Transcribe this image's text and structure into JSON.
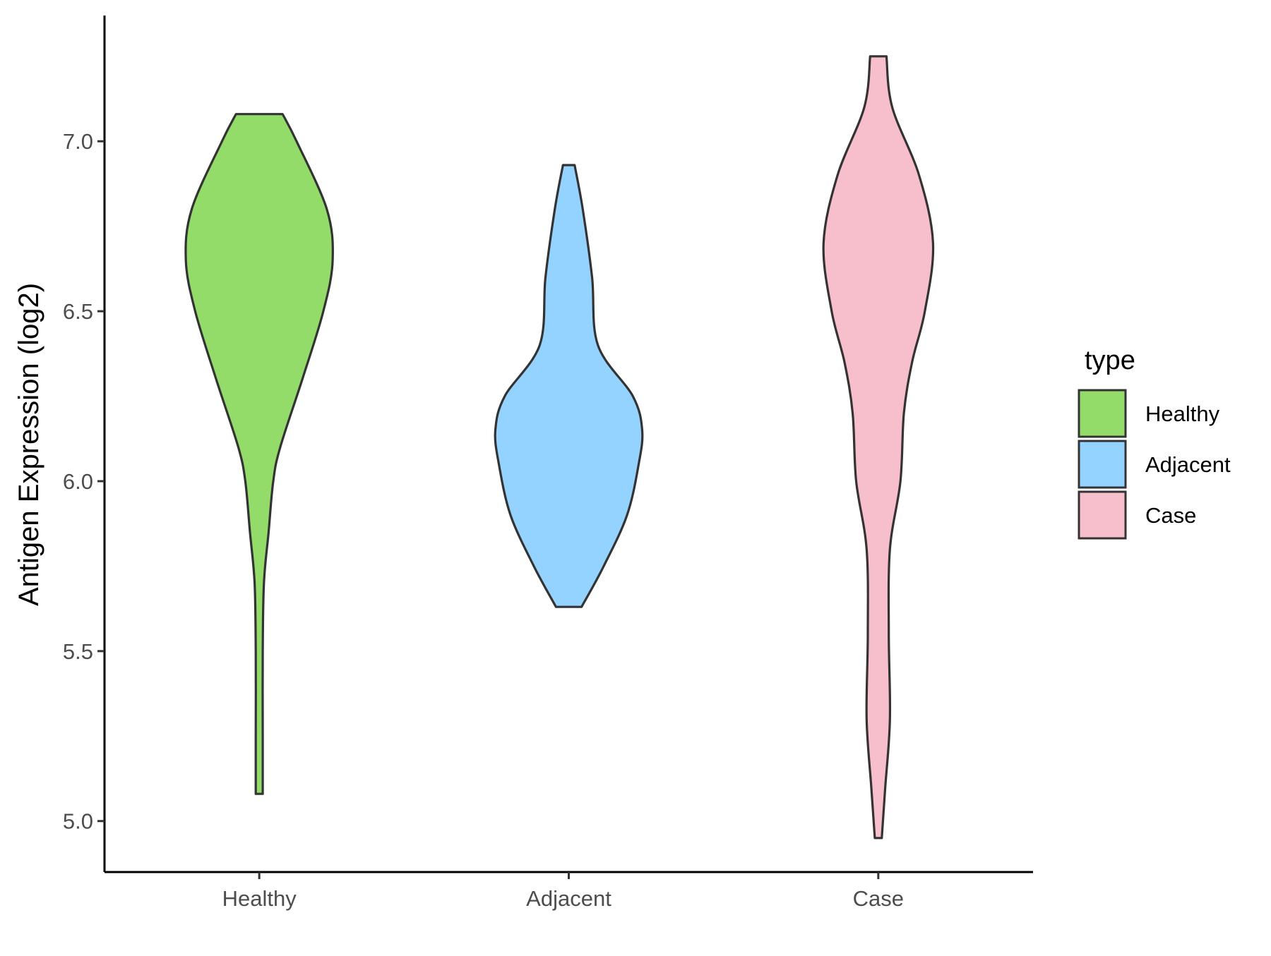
{
  "chart_data": {
    "type": "violin",
    "title": "",
    "xlabel": "",
    "ylabel": "Antigen Expression (log2)",
    "ylim": [
      4.85,
      7.37
    ],
    "yticks": [
      5.0,
      5.5,
      6.0,
      6.5,
      7.0
    ],
    "ytick_labels": [
      "5.0",
      "5.5",
      "6.0",
      "6.5",
      "7.0"
    ],
    "categories": [
      "Healthy",
      "Adjacent",
      "Case"
    ],
    "grid": false,
    "legend": {
      "title": "type",
      "position": "right",
      "entries": [
        "Healthy",
        "Adjacent",
        "Case"
      ]
    },
    "series": [
      {
        "category": "Healthy",
        "color": "#93dc6a",
        "min": 5.08,
        "max": 7.08,
        "profile": [
          [
            5.08,
            0.03
          ],
          [
            5.25,
            0.03
          ],
          [
            5.5,
            0.03
          ],
          [
            5.7,
            0.04
          ],
          [
            5.85,
            0.08
          ],
          [
            6.0,
            0.12
          ],
          [
            6.1,
            0.18
          ],
          [
            6.3,
            0.37
          ],
          [
            6.5,
            0.55
          ],
          [
            6.65,
            0.63
          ],
          [
            6.8,
            0.58
          ],
          [
            7.0,
            0.32
          ],
          [
            7.08,
            0.2
          ]
        ]
      },
      {
        "category": "Adjacent",
        "color": "#94d2ff",
        "min": 5.63,
        "max": 6.93,
        "profile": [
          [
            5.63,
            0.11
          ],
          [
            5.75,
            0.3
          ],
          [
            5.9,
            0.5
          ],
          [
            6.05,
            0.6
          ],
          [
            6.15,
            0.63
          ],
          [
            6.25,
            0.55
          ],
          [
            6.4,
            0.25
          ],
          [
            6.6,
            0.2
          ],
          [
            6.8,
            0.12
          ],
          [
            6.93,
            0.05
          ]
        ]
      },
      {
        "category": "Case",
        "color": "#f7bfcb",
        "min": 4.95,
        "max": 7.25,
        "profile": [
          [
            4.95,
            0.03
          ],
          [
            5.1,
            0.06
          ],
          [
            5.3,
            0.1
          ],
          [
            5.55,
            0.09
          ],
          [
            5.8,
            0.1
          ],
          [
            6.0,
            0.19
          ],
          [
            6.2,
            0.22
          ],
          [
            6.35,
            0.29
          ],
          [
            6.5,
            0.4
          ],
          [
            6.7,
            0.47
          ],
          [
            6.9,
            0.35
          ],
          [
            7.1,
            0.12
          ],
          [
            7.25,
            0.07
          ]
        ]
      }
    ]
  }
}
